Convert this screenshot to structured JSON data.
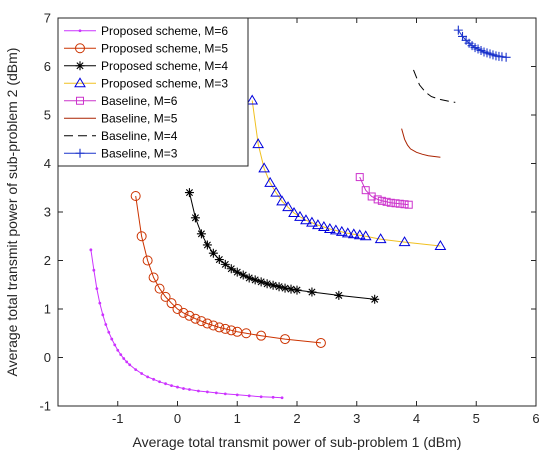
{
  "chart_data": {
    "type": "line",
    "xlabel": "Average total transmit power of sub-problem 1 (dBm)",
    "ylabel": "Average total transmit power of sub-problem 2 (dBm)",
    "xlim": [
      -2,
      6
    ],
    "ylim": [
      -1,
      7
    ],
    "xticks": [
      -1,
      0,
      1,
      2,
      3,
      4,
      5,
      6
    ],
    "yticks": [
      -1,
      0,
      1,
      2,
      3,
      4,
      5,
      6,
      7
    ],
    "grid": false,
    "legend_position": "top-left",
    "series": [
      {
        "name": "Proposed scheme, M=6",
        "color": "#cc33ff",
        "marker": "dot",
        "line": "solid",
        "x": [
          -1.45,
          -1.4,
          -1.35,
          -1.3,
          -1.25,
          -1.2,
          -1.15,
          -1.1,
          -1.05,
          -1.0,
          -0.95,
          -0.9,
          -0.85,
          -0.8,
          -0.7,
          -0.6,
          -0.5,
          -0.4,
          -0.3,
          -0.2,
          -0.1,
          0.0,
          0.1,
          0.2,
          0.35,
          0.5,
          0.65,
          0.8,
          1.0,
          1.2,
          1.4,
          1.6,
          1.75
        ],
        "y": [
          2.22,
          1.8,
          1.42,
          1.12,
          0.88,
          0.68,
          0.52,
          0.38,
          0.26,
          0.15,
          0.06,
          -0.02,
          -0.09,
          -0.15,
          -0.25,
          -0.33,
          -0.4,
          -0.45,
          -0.5,
          -0.54,
          -0.58,
          -0.61,
          -0.64,
          -0.66,
          -0.69,
          -0.71,
          -0.73,
          -0.75,
          -0.77,
          -0.79,
          -0.81,
          -0.82,
          -0.83
        ]
      },
      {
        "name": "Proposed scheme, M=5",
        "color": "#cc3300",
        "marker": "circle",
        "line": "solid",
        "x": [
          -0.7,
          -0.6,
          -0.5,
          -0.4,
          -0.3,
          -0.2,
          -0.1,
          0.0,
          0.1,
          0.2,
          0.3,
          0.4,
          0.5,
          0.6,
          0.7,
          0.8,
          0.9,
          1.0,
          1.15,
          1.4,
          1.8,
          2.4
        ],
        "y": [
          3.33,
          2.5,
          2.0,
          1.65,
          1.42,
          1.25,
          1.12,
          1.0,
          0.92,
          0.86,
          0.8,
          0.75,
          0.7,
          0.66,
          0.62,
          0.59,
          0.56,
          0.53,
          0.5,
          0.45,
          0.38,
          0.3
        ]
      },
      {
        "name": "Proposed scheme, M=4",
        "color": "#000000",
        "marker": "asterisk",
        "line": "solid",
        "x": [
          0.2,
          0.3,
          0.4,
          0.5,
          0.6,
          0.7,
          0.8,
          0.9,
          1.0,
          1.1,
          1.2,
          1.3,
          1.4,
          1.5,
          1.6,
          1.7,
          1.8,
          1.9,
          2.0,
          2.25,
          2.7,
          3.3
        ],
        "y": [
          3.4,
          2.88,
          2.55,
          2.32,
          2.15,
          2.02,
          1.92,
          1.83,
          1.76,
          1.7,
          1.64,
          1.6,
          1.56,
          1.52,
          1.49,
          1.46,
          1.43,
          1.41,
          1.39,
          1.35,
          1.28,
          1.2
        ]
      },
      {
        "name": "Proposed scheme, M=3",
        "color": "#0000dd",
        "line_color": "#f0c020",
        "marker": "triangle",
        "line": "solid",
        "x": [
          1.25,
          1.35,
          1.45,
          1.55,
          1.65,
          1.75,
          1.85,
          1.95,
          2.05,
          2.15,
          2.25,
          2.35,
          2.45,
          2.55,
          2.65,
          2.75,
          2.85,
          2.95,
          3.05,
          3.15,
          3.4,
          3.8,
          4.4
        ],
        "y": [
          5.3,
          4.4,
          3.9,
          3.6,
          3.4,
          3.22,
          3.1,
          2.98,
          2.9,
          2.83,
          2.78,
          2.73,
          2.69,
          2.65,
          2.62,
          2.59,
          2.56,
          2.54,
          2.52,
          2.5,
          2.44,
          2.38,
          2.3
        ]
      },
      {
        "name": "Baseline, M=6",
        "color": "#cc33cc",
        "marker": "square",
        "line": "solid",
        "x": [
          3.05,
          3.15,
          3.25,
          3.35,
          3.42,
          3.5,
          3.57,
          3.65,
          3.72,
          3.8,
          3.87
        ],
        "y": [
          3.72,
          3.45,
          3.32,
          3.26,
          3.23,
          3.21,
          3.19,
          3.18,
          3.17,
          3.16,
          3.15
        ]
      },
      {
        "name": "Baseline, M=5",
        "color": "#aa2200",
        "marker": "none",
        "line": "solid",
        "x": [
          3.75,
          3.8,
          3.85,
          3.9,
          4.0,
          4.1,
          4.2,
          4.4
        ],
        "y": [
          4.72,
          4.5,
          4.38,
          4.3,
          4.23,
          4.19,
          4.16,
          4.13
        ]
      },
      {
        "name": "Baseline, M=4",
        "color": "#000000",
        "marker": "none",
        "line": "dashed",
        "x": [
          3.95,
          4.05,
          4.15,
          4.25,
          4.4,
          4.55,
          4.65
        ],
        "y": [
          5.93,
          5.62,
          5.47,
          5.38,
          5.32,
          5.28,
          5.26
        ]
      },
      {
        "name": "Baseline, M=3",
        "color": "#1a33cc",
        "marker": "plus",
        "line": "solid",
        "x": [
          4.7,
          4.77,
          4.83,
          4.88,
          4.93,
          4.98,
          5.03,
          5.08,
          5.13,
          5.18,
          5.23,
          5.28,
          5.33,
          5.38,
          5.43,
          5.5
        ],
        "y": [
          6.75,
          6.62,
          6.54,
          6.48,
          6.43,
          6.39,
          6.36,
          6.33,
          6.3,
          6.28,
          6.26,
          6.24,
          6.22,
          6.21,
          6.2,
          6.19
        ]
      }
    ]
  }
}
